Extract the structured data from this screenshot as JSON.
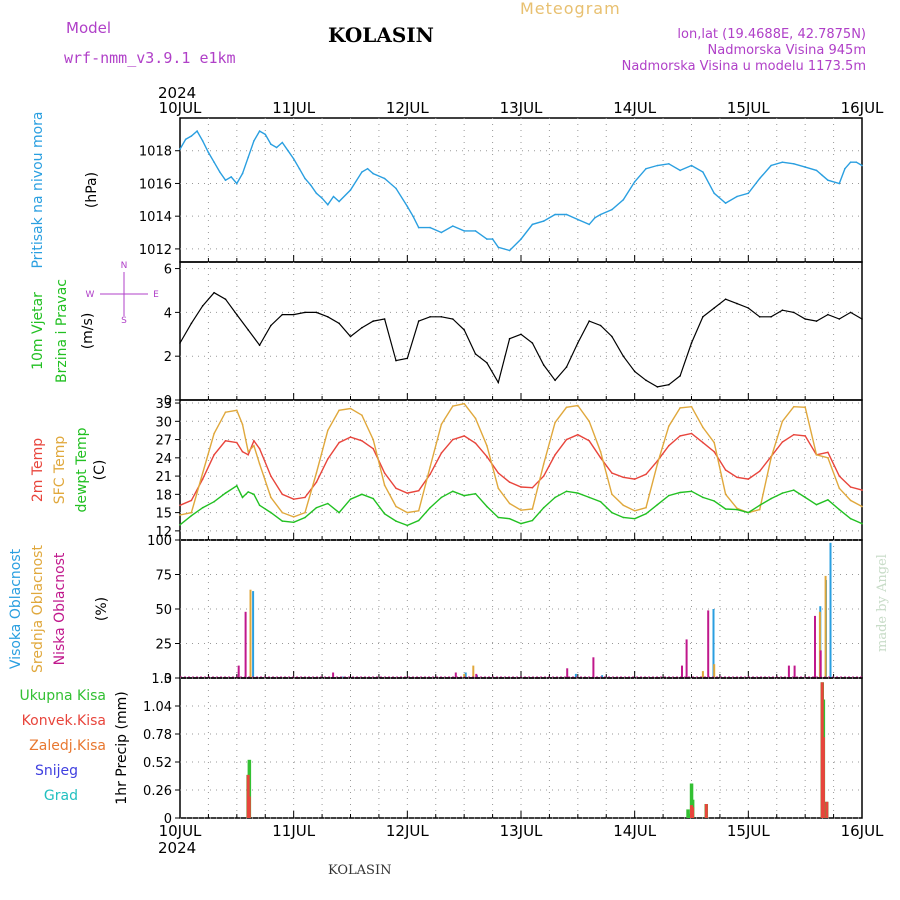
{
  "header": {
    "model_label": "Model",
    "model_name": "wrf-nmm_v3.9.1  e1km",
    "station": "KOLASIN",
    "meteogram": "Meteogram",
    "lonlat": "lon,lat (19.4688E, 42.7875N)",
    "elevation": "Nadmorska Visina 945m",
    "model_elevation": "Nadmorska Visina u modelu 1173.5m",
    "year": "2024",
    "footer_station": "KOLASIN",
    "credit": "made by Angel"
  },
  "colors": {
    "pressure": "#2a9fe0",
    "t2m": "#e8453c",
    "sfc": "#e0a83c",
    "dewpt": "#22c022",
    "high_cloud": "#2a9fe0",
    "mid_cloud": "#e0a83c",
    "low_cloud": "#c0188c",
    "total_precip": "#33c033",
    "conv_precip": "#e8453c",
    "frozen": "#e87830",
    "snow": "#4040e0",
    "hail": "#22c0c0"
  },
  "days": [
    "10JUL",
    "11JUL",
    "12JUL",
    "13JUL",
    "14JUL",
    "15JUL",
    "16JUL"
  ],
  "chart_data": [
    {
      "type": "line",
      "ylabel_lines": [
        "Pritisak na nivou mora",
        "(hPa)"
      ],
      "ylim": [
        1011.2,
        1020
      ],
      "yticks": [
        "1012",
        "1014",
        "1016",
        "1018"
      ],
      "x": [
        0,
        0.05,
        0.1,
        0.15,
        0.2,
        0.25,
        0.3,
        0.35,
        0.4,
        0.45,
        0.5,
        0.55,
        0.6,
        0.65,
        0.7,
        0.75,
        0.8,
        0.85,
        0.9,
        0.95,
        1.0,
        1.05,
        1.1,
        1.15,
        1.2,
        1.25,
        1.3,
        1.35,
        1.4,
        1.5,
        1.6,
        1.65,
        1.7,
        1.8,
        1.9,
        2.0,
        2.05,
        2.1,
        2.2,
        2.3,
        2.4,
        2.5,
        2.6,
        2.7,
        2.75,
        2.8,
        2.9,
        3.0,
        3.1,
        3.2,
        3.3,
        3.4,
        3.5,
        3.6,
        3.65,
        3.7,
        3.8,
        3.9,
        4.0,
        4.1,
        4.2,
        4.3,
        4.4,
        4.5,
        4.6,
        4.7,
        4.8,
        4.9,
        5.0,
        5.1,
        5.2,
        5.3,
        5.4,
        5.5,
        5.6,
        5.65,
        5.7,
        5.8,
        5.85,
        5.9,
        5.95,
        6.0
      ],
      "series": [
        {
          "values": [
            1018.1,
            1018.7,
            1018.9,
            1019.2,
            1018.6,
            1017.9,
            1017.3,
            1016.7,
            1016.2,
            1016.4,
            1016.0,
            1016.6,
            1017.6,
            1018.6,
            1019.2,
            1019.0,
            1018.4,
            1018.2,
            1018.5,
            1018.0,
            1017.5,
            1016.9,
            1016.3,
            1015.9,
            1015.4,
            1015.1,
            1014.7,
            1015.2,
            1014.9,
            1015.6,
            1016.7,
            1016.9,
            1016.6,
            1016.3,
            1015.7,
            1014.6,
            1014.0,
            1013.3,
            1013.3,
            1013.0,
            1013.4,
            1013.1,
            1013.1,
            1012.6,
            1012.6,
            1012.1,
            1011.9,
            1012.6,
            1013.5,
            1013.7,
            1014.1,
            1014.1,
            1013.8,
            1013.5,
            1013.9,
            1014.1,
            1014.4,
            1015.0,
            1016.1,
            1016.9,
            1017.1,
            1017.2,
            1016.8,
            1017.1,
            1016.7,
            1015.4,
            1014.8,
            1015.2,
            1015.4,
            1016.3,
            1017.1,
            1017.3,
            1017.2,
            1017.0,
            1016.8,
            1016.5,
            1016.2,
            1016.0,
            1016.9,
            1017.3,
            1017.3,
            1017.1
          ]
        }
      ]
    },
    {
      "type": "line",
      "ylabel_lines": [
        "10m Vjetar",
        "Brzina i Pravac",
        "(m/s)"
      ],
      "direction_legend": [
        "N",
        "W",
        "E",
        "S"
      ],
      "ylim": [
        0,
        6.3
      ],
      "yticks": [
        "0",
        "2",
        "4",
        "6"
      ],
      "x": [
        0,
        0.1,
        0.2,
        0.3,
        0.4,
        0.5,
        0.6,
        0.7,
        0.8,
        0.9,
        1.0,
        1.1,
        1.2,
        1.3,
        1.4,
        1.5,
        1.6,
        1.7,
        1.8,
        1.9,
        2.0,
        2.1,
        2.2,
        2.3,
        2.4,
        2.5,
        2.6,
        2.7,
        2.8,
        2.9,
        3.0,
        3.1,
        3.2,
        3.3,
        3.4,
        3.5,
        3.6,
        3.7,
        3.8,
        3.9,
        4.0,
        4.1,
        4.2,
        4.3,
        4.4,
        4.5,
        4.6,
        4.7,
        4.8,
        4.9,
        5.0,
        5.1,
        5.2,
        5.3,
        5.4,
        5.5,
        5.6,
        5.7,
        5.8,
        5.9,
        6.0
      ],
      "series": [
        {
          "name": "speed",
          "values": [
            2.6,
            3.5,
            4.3,
            4.9,
            4.6,
            3.9,
            3.2,
            2.5,
            3.4,
            3.9,
            3.9,
            4.0,
            4.0,
            3.8,
            3.5,
            2.9,
            3.3,
            3.6,
            3.7,
            1.8,
            1.9,
            3.6,
            3.8,
            3.8,
            3.7,
            3.2,
            2.1,
            1.7,
            0.8,
            2.8,
            3.0,
            2.6,
            1.6,
            0.9,
            1.5,
            2.6,
            3.6,
            3.4,
            2.9,
            2.0,
            1.3,
            0.9,
            0.6,
            0.7,
            1.1,
            2.6,
            3.8,
            4.2,
            4.6,
            4.4,
            4.2,
            3.8,
            3.8,
            4.1,
            4.0,
            3.7,
            3.6,
            3.9,
            3.7,
            4.0,
            3.7
          ]
        }
      ]
    },
    {
      "type": "line",
      "ylabel_lines": [
        "2m Temp",
        "SFC Temp",
        "dewpt Temp",
        "(C)"
      ],
      "ylim": [
        10.5,
        33.5
      ],
      "yticks": [
        "12",
        "15",
        "18",
        "21",
        "24",
        "27",
        "30",
        "33"
      ],
      "x": [
        0,
        0.1,
        0.2,
        0.3,
        0.4,
        0.5,
        0.55,
        0.6,
        0.65,
        0.7,
        0.8,
        0.9,
        1.0,
        1.1,
        1.2,
        1.3,
        1.4,
        1.5,
        1.6,
        1.7,
        1.8,
        1.9,
        2.0,
        2.1,
        2.2,
        2.3,
        2.4,
        2.5,
        2.6,
        2.7,
        2.8,
        2.9,
        3.0,
        3.1,
        3.2,
        3.3,
        3.4,
        3.5,
        3.6,
        3.7,
        3.8,
        3.9,
        4.0,
        4.1,
        4.2,
        4.3,
        4.4,
        4.5,
        4.6,
        4.7,
        4.8,
        4.9,
        5.0,
        5.1,
        5.2,
        5.3,
        5.4,
        5.5,
        5.6,
        5.7,
        5.8,
        5.9,
        6.0
      ],
      "series": [
        {
          "name": "2m Temp",
          "values": [
            16.2,
            17.0,
            20.5,
            24.5,
            26.8,
            26.5,
            25.0,
            24.5,
            26.8,
            25.5,
            21.0,
            18.0,
            17.2,
            17.5,
            20.0,
            23.8,
            26.5,
            27.4,
            26.8,
            25.5,
            21.5,
            19.0,
            18.2,
            18.6,
            21.3,
            24.8,
            27.0,
            27.6,
            26.4,
            24.2,
            21.5,
            20.0,
            19.2,
            19.1,
            21.0,
            24.5,
            27.0,
            27.8,
            26.8,
            24.0,
            21.5,
            20.8,
            20.5,
            21.3,
            23.5,
            26.0,
            27.6,
            28.0,
            26.5,
            25.0,
            22.0,
            20.8,
            20.5,
            21.8,
            24.2,
            26.6,
            27.8,
            27.6,
            24.5,
            24.9,
            21.0,
            19.2,
            18.7
          ]
        },
        {
          "name": "SFC Temp",
          "values": [
            14.6,
            15.0,
            21.5,
            28.0,
            31.5,
            31.8,
            29.5,
            25.0,
            26.0,
            23.0,
            17.5,
            15.0,
            14.3,
            15.0,
            21.5,
            28.5,
            31.8,
            32.1,
            31.0,
            27.0,
            19.5,
            16.0,
            15.0,
            15.3,
            22.5,
            29.5,
            32.5,
            32.9,
            30.5,
            26.0,
            19.0,
            16.5,
            15.4,
            15.6,
            23.0,
            29.8,
            32.3,
            32.6,
            30.0,
            25.0,
            18.0,
            16.2,
            15.3,
            15.8,
            23.0,
            29.2,
            32.2,
            32.4,
            29.0,
            26.5,
            18.0,
            15.7,
            15.0,
            15.5,
            24.0,
            30.0,
            32.4,
            32.3,
            24.5,
            24.0,
            19.0,
            17.0,
            16.0
          ]
        },
        {
          "name": "dewpt Temp",
          "values": [
            13.0,
            14.5,
            15.8,
            16.8,
            18.2,
            19.4,
            17.5,
            18.4,
            18.0,
            16.2,
            15.0,
            13.6,
            13.4,
            14.2,
            15.8,
            16.5,
            15.0,
            17.2,
            18.0,
            17.3,
            14.8,
            13.6,
            12.9,
            13.7,
            15.8,
            17.5,
            18.5,
            17.8,
            18.1,
            16.0,
            14.2,
            14.0,
            13.2,
            13.7,
            15.8,
            17.5,
            18.5,
            18.2,
            17.5,
            16.8,
            15.0,
            14.2,
            14.0,
            14.8,
            16.3,
            17.8,
            18.3,
            18.5,
            17.5,
            16.9,
            15.6,
            15.5,
            15.0,
            16.2,
            17.3,
            18.2,
            18.7,
            17.5,
            16.3,
            17.1,
            15.5,
            14.0,
            13.2
          ]
        }
      ]
    },
    {
      "type": "bar",
      "ylabel_lines": [
        "Visoka Oblacnost",
        "Srednja Oblacnost",
        "Niska Oblacnost",
        "(%)"
      ],
      "ylim": [
        0,
        100
      ],
      "yticks": [
        "0",
        "25",
        "50",
        "75",
        "100"
      ],
      "series": [
        {
          "name": "Visoka Oblacnost",
          "x": [
            0.63,
            1.42,
            2.5,
            2.6,
            3.47,
            3.7,
            4.68,
            5.62,
            5.67,
            5.71
          ],
          "values": [
            63,
            1,
            4,
            2,
            3,
            2,
            50,
            52,
            71,
            98
          ]
        },
        {
          "name": "Srednja Oblacnost",
          "x": [
            0.62,
            2.5,
            2.58,
            4.6,
            4.7,
            5.63,
            5.68
          ],
          "values": [
            64,
            3,
            9,
            5,
            10,
            48,
            74
          ]
        },
        {
          "name": "Niska Oblacnost",
          "x": [
            0.53,
            0.59,
            1.36,
            2.44,
            2.62,
            3.42,
            3.65,
            4.43,
            4.47,
            4.66,
            5.37,
            5.42,
            5.6,
            5.65
          ],
          "values": [
            9,
            48,
            4,
            4,
            3,
            7,
            15,
            9,
            28,
            49,
            9,
            9,
            45,
            20
          ]
        }
      ]
    },
    {
      "type": "bar",
      "ylabel_lines": [
        "1hr Precip (mm)"
      ],
      "legend": [
        "Ukupna Kisa",
        "Konvek.Kisa",
        "Zaledj.Kisa",
        "Snijeg",
        "Grad"
      ],
      "ylim": [
        0,
        1.3
      ],
      "yticks": [
        "0",
        "0.26",
        "0.52",
        "0.78",
        "1.04",
        "1.3"
      ],
      "series": [
        {
          "name": "Ukupna Kisa",
          "x": [
            0.6,
            0.61,
            4.47,
            4.48,
            4.5,
            4.51,
            4.63,
            5.65,
            5.66,
            5.69
          ],
          "values": [
            0.4,
            0.54,
            0.08,
            0.04,
            0.32,
            0.17,
            0.13,
            1.26,
            1.1,
            0.15
          ]
        },
        {
          "name": "Konvek.Kisa",
          "x": [
            0.6,
            0.61,
            4.5,
            4.51,
            4.63,
            5.65,
            5.66,
            5.69
          ],
          "values": [
            0.4,
            0.2,
            0.12,
            0.1,
            0.13,
            1.26,
            0.75,
            0.15
          ]
        }
      ]
    }
  ]
}
